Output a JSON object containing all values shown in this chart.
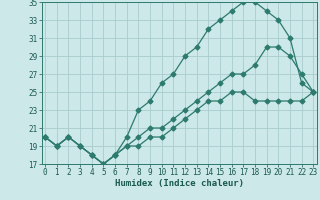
{
  "title": "",
  "xlabel": "Humidex (Indice chaleur)",
  "ylabel": "",
  "bg_color": "#cce8e8",
  "grid_color": "#aacccc",
  "line_color": "#2d7a6e",
  "xlim": [
    0,
    23
  ],
  "ylim": [
    17,
    35
  ],
  "xticks": [
    0,
    1,
    2,
    3,
    4,
    5,
    6,
    7,
    8,
    9,
    10,
    11,
    12,
    13,
    14,
    15,
    16,
    17,
    18,
    19,
    20,
    21,
    22,
    23
  ],
  "yticks": [
    17,
    19,
    21,
    23,
    25,
    27,
    29,
    31,
    33,
    35
  ],
  "line1_x": [
    0,
    1,
    2,
    3,
    4,
    5,
    6,
    7,
    8,
    9,
    10,
    11,
    12,
    13,
    14,
    15,
    16,
    17,
    18,
    19,
    20,
    21,
    22,
    23
  ],
  "line1_y": [
    20,
    19,
    20,
    19,
    18,
    17,
    18,
    20,
    23,
    24,
    26,
    27,
    29,
    30,
    32,
    33,
    34,
    35,
    35,
    34,
    33,
    31,
    26,
    25
  ],
  "line2_x": [
    0,
    1,
    2,
    3,
    4,
    5,
    6,
    7,
    8,
    9,
    10,
    11,
    12,
    13,
    14,
    15,
    16,
    17,
    18,
    19,
    20,
    21,
    22,
    23
  ],
  "line2_y": [
    20,
    19,
    20,
    19,
    18,
    17,
    18,
    19,
    20,
    21,
    21,
    22,
    23,
    24,
    25,
    26,
    27,
    27,
    28,
    30,
    30,
    29,
    27,
    25
  ],
  "line3_x": [
    0,
    1,
    2,
    3,
    4,
    5,
    6,
    7,
    8,
    9,
    10,
    11,
    12,
    13,
    14,
    15,
    16,
    17,
    18,
    19,
    20,
    21,
    22,
    23
  ],
  "line3_y": [
    20,
    19,
    20,
    19,
    18,
    17,
    18,
    19,
    19,
    20,
    20,
    21,
    22,
    23,
    24,
    24,
    25,
    25,
    24,
    24,
    24,
    24,
    24,
    25
  ],
  "marker": "D",
  "markersize": 2.5,
  "linewidth": 0.9,
  "tick_fontsize": 5.5,
  "xlabel_fontsize": 6.5
}
